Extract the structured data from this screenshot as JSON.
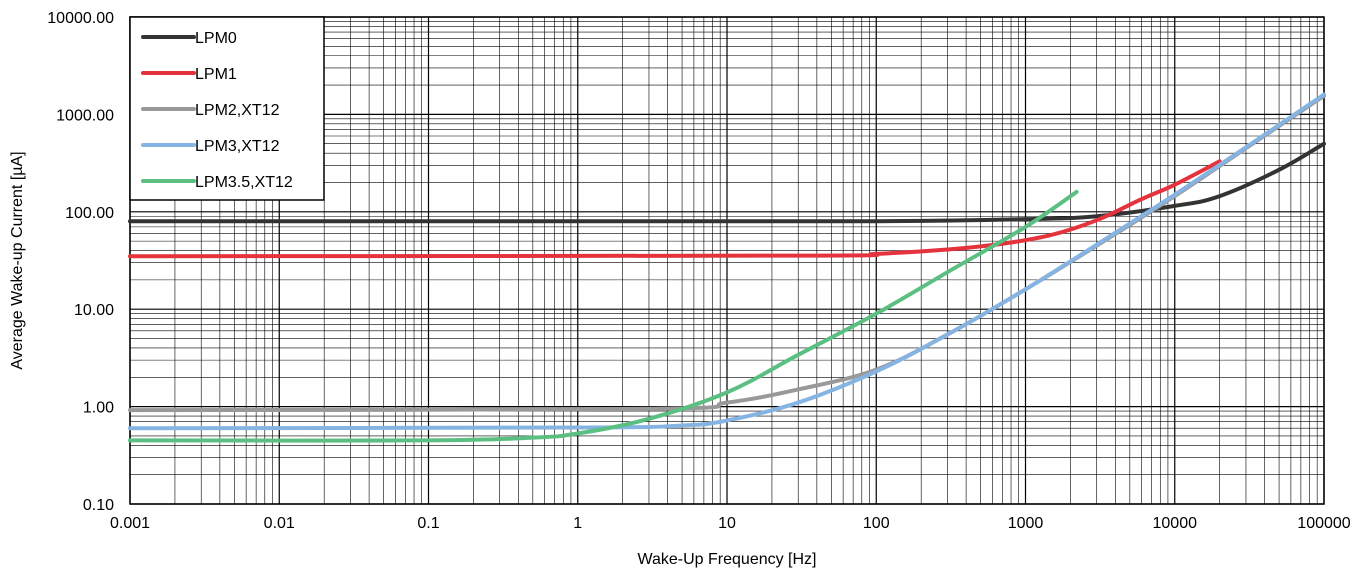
{
  "chart_data": {
    "type": "line",
    "xlabel": "Wake-Up Frequency [Hz]",
    "ylabel": "Average Wake-up Current [µA]",
    "xscale": "log",
    "yscale": "log",
    "xlim": [
      0.001,
      100000
    ],
    "ylim": [
      0.1,
      10000
    ],
    "grid": true,
    "legend_position": "top-left",
    "x_tick_labels": [
      "0.001",
      "0.01",
      "0.1",
      "1",
      "10",
      "100",
      "1000",
      "10000",
      "100000"
    ],
    "y_tick_labels": [
      "0.10",
      "1.00",
      "10.00",
      "100.00",
      "1000.00",
      "10000.00"
    ],
    "series": [
      {
        "name": "LPM0",
        "color": "#333333",
        "points": [
          [
            0.001,
            80
          ],
          [
            1,
            80
          ],
          [
            100,
            80
          ],
          [
            1000,
            84
          ],
          [
            3000,
            90
          ],
          [
            10000,
            115
          ],
          [
            20000,
            145
          ],
          [
            50000,
            270
          ],
          [
            100000,
            500
          ]
        ]
      },
      {
        "name": "LPM1",
        "color": "#e5333d",
        "points": [
          [
            0.001,
            35
          ],
          [
            30,
            35.5
          ],
          [
            100,
            37
          ],
          [
            300,
            41
          ],
          [
            700,
            47
          ],
          [
            1500,
            58
          ],
          [
            3000,
            82
          ],
          [
            6000,
            135
          ],
          [
            10000,
            190
          ],
          [
            20000,
            330
          ]
        ]
      },
      {
        "name": "LPM2,XT12",
        "color": "#999999",
        "points": [
          [
            0.001,
            0.92
          ],
          [
            3,
            0.95
          ],
          [
            10,
            1.1
          ],
          [
            30,
            1.5
          ],
          [
            100,
            2.4
          ],
          [
            300,
            5.5
          ],
          [
            1000,
            16
          ],
          [
            3000,
            45
          ],
          [
            10000,
            145
          ],
          [
            30000,
            450
          ],
          [
            100000,
            1550
          ]
        ]
      },
      {
        "name": "LPM3,XT12",
        "color": "#86b4e2",
        "points": [
          [
            0.001,
            0.6
          ],
          [
            1,
            0.61
          ],
          [
            5,
            0.64
          ],
          [
            10,
            0.72
          ],
          [
            30,
            1.1
          ],
          [
            100,
            2.3
          ],
          [
            300,
            5.5
          ],
          [
            1000,
            16
          ],
          [
            3000,
            46
          ],
          [
            10000,
            150
          ],
          [
            30000,
            460
          ],
          [
            100000,
            1600
          ]
        ]
      },
      {
        "name": "LPM3.5,XT12",
        "color": "#5cbf82",
        "points": [
          [
            0.001,
            0.45
          ],
          [
            0.1,
            0.45
          ],
          [
            0.5,
            0.48
          ],
          [
            1,
            0.53
          ],
          [
            3,
            0.75
          ],
          [
            10,
            1.4
          ],
          [
            30,
            3.4
          ],
          [
            100,
            9
          ],
          [
            300,
            24
          ],
          [
            1000,
            70
          ],
          [
            2200,
            160
          ]
        ]
      }
    ]
  }
}
